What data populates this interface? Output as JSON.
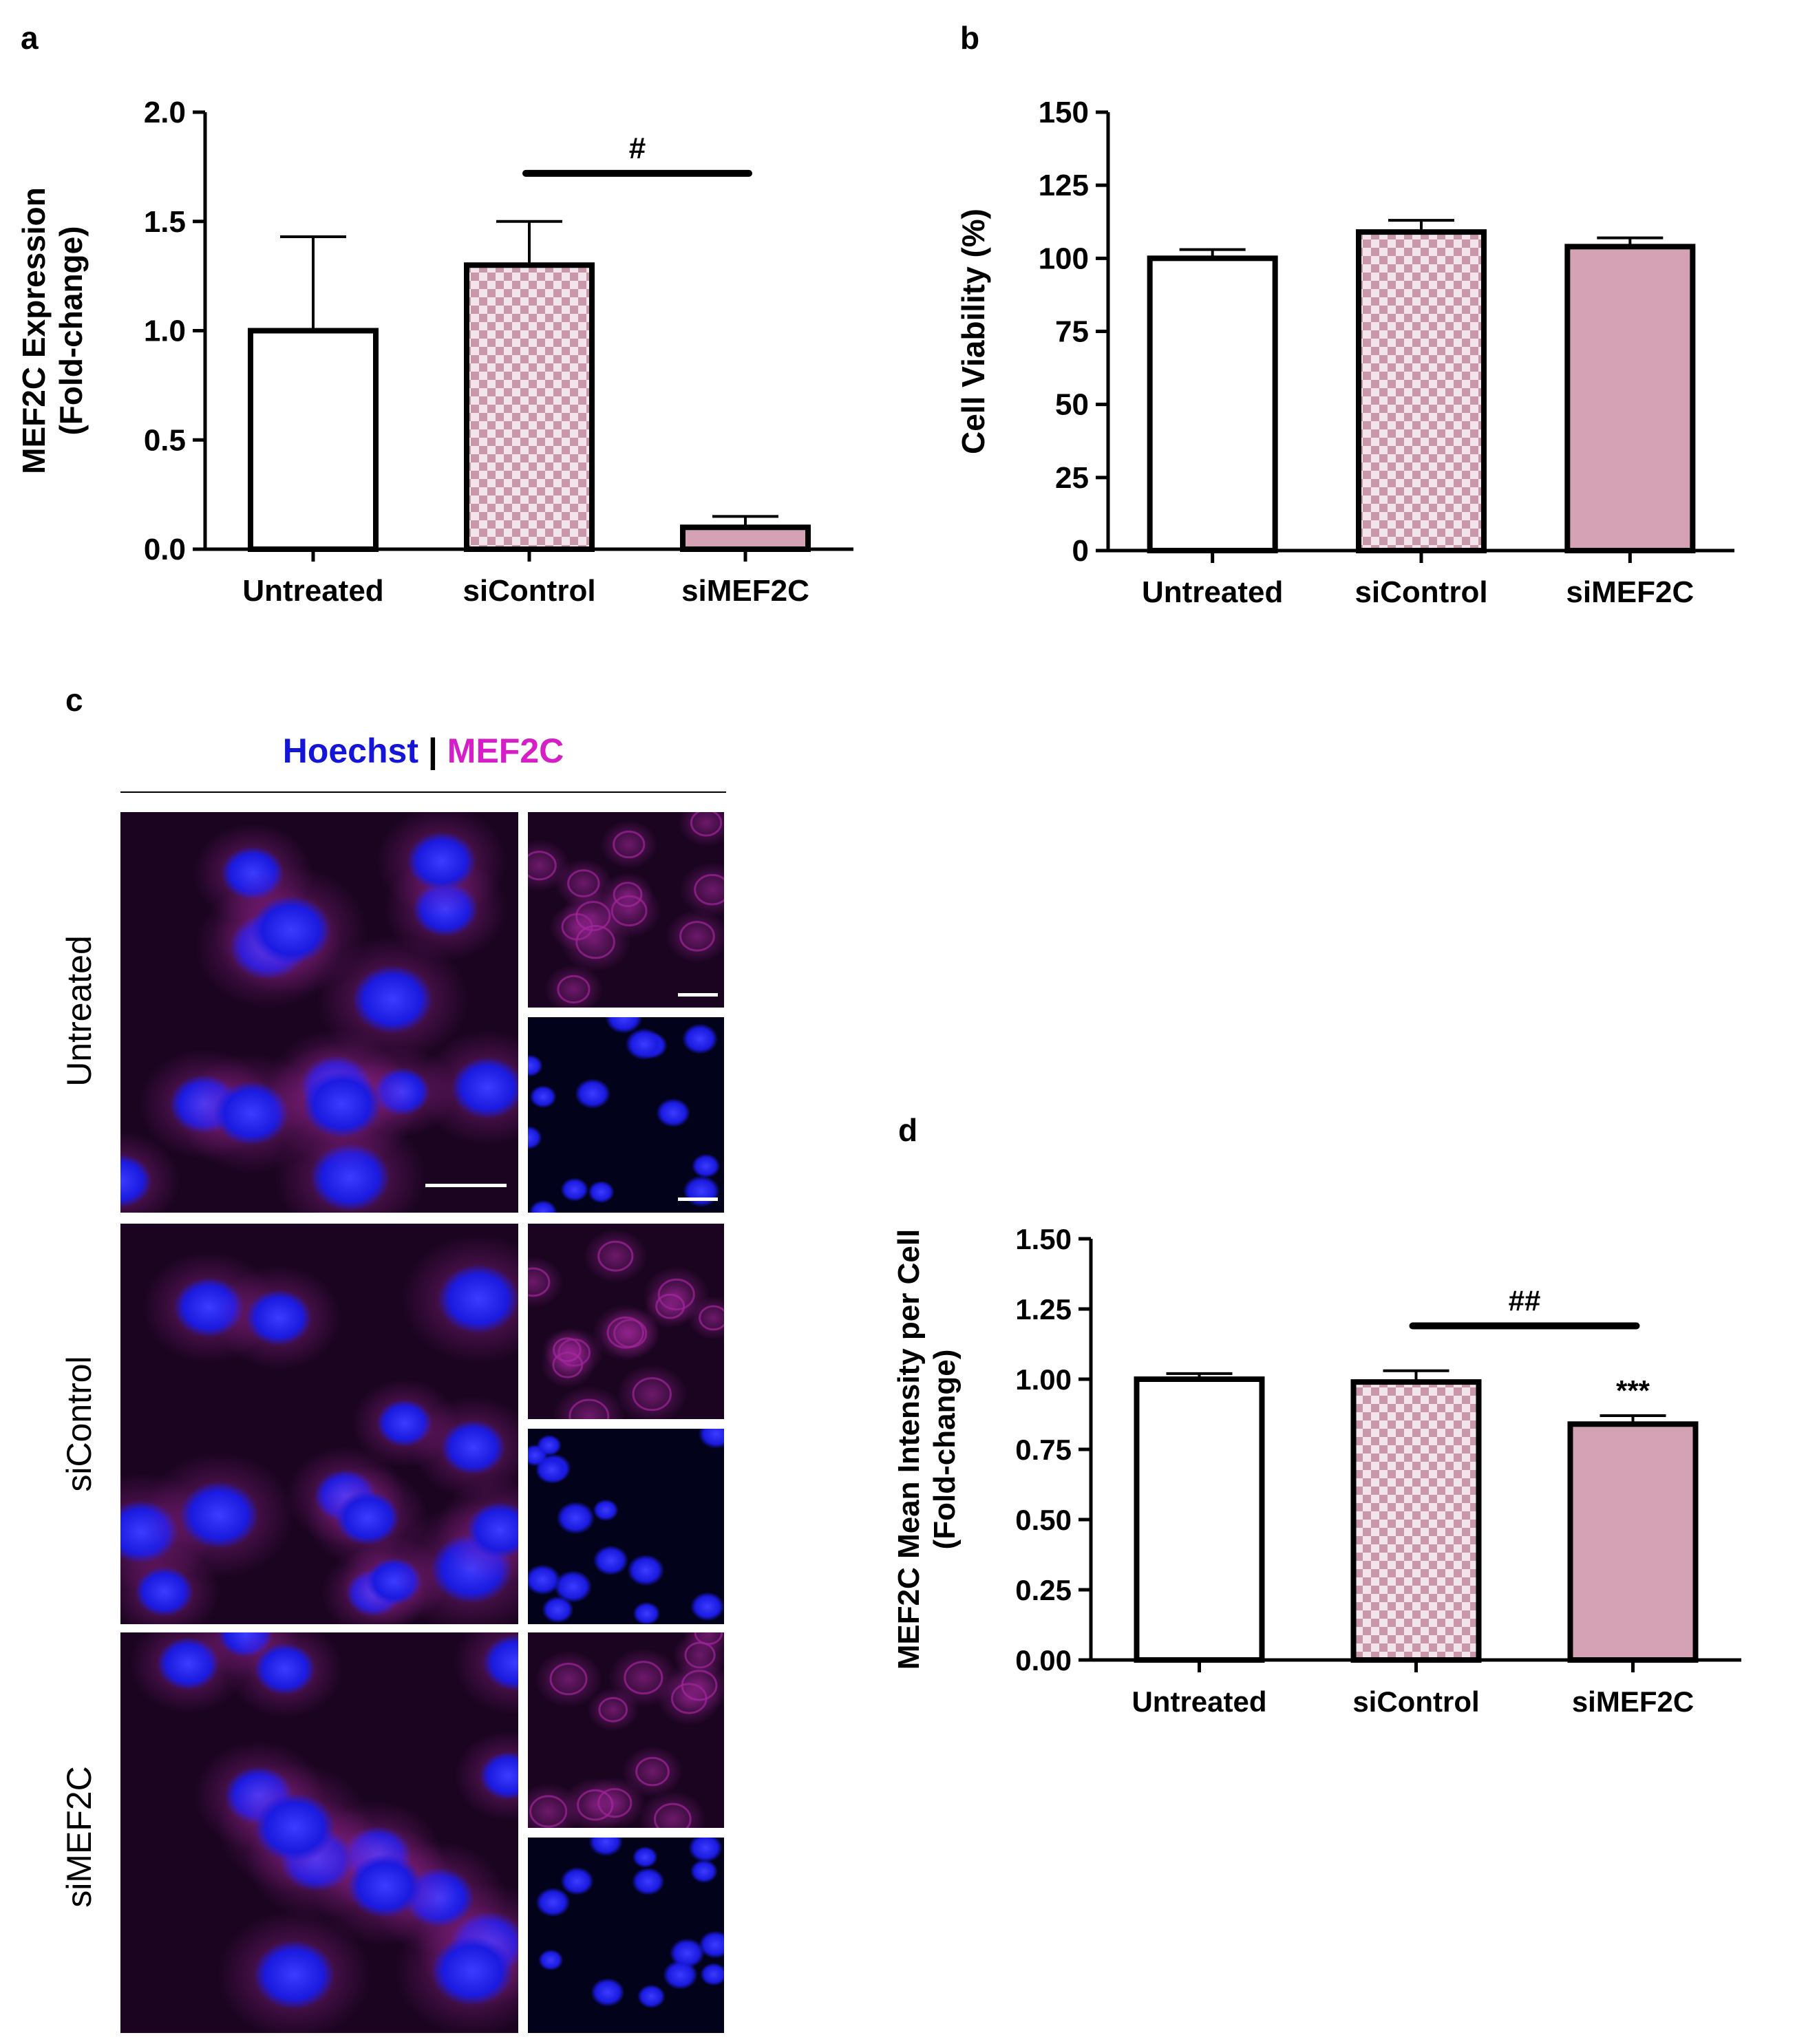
{
  "panels": {
    "a": "a",
    "b": "b",
    "c": "c",
    "d": "d"
  },
  "chart_data": [
    {
      "panel": "a",
      "type": "bar",
      "categories": [
        "Untreated",
        "siControl",
        "siMEF2C"
      ],
      "values": [
        1.0,
        1.3,
        0.1
      ],
      "errors": [
        0.43,
        0.2,
        0.05
      ],
      "ylabel_line1": "MEF2C Expression",
      "ylabel_line2": "(Fold-change)",
      "ylim": [
        0,
        2.0
      ],
      "yticks": [
        0.0,
        0.5,
        1.0,
        1.5,
        2.0
      ],
      "ytick_labels": [
        "0.0",
        "0.5",
        "1.0",
        "1.5",
        "2.0"
      ],
      "bar_styles": [
        "white",
        "checker",
        "pink"
      ],
      "significance": {
        "from": 1,
        "to": 2,
        "label": "#",
        "level": 1.72
      }
    },
    {
      "panel": "b",
      "type": "bar",
      "categories": [
        "Untreated",
        "siControl",
        "siMEF2C"
      ],
      "values": [
        100,
        109,
        104
      ],
      "errors": [
        3,
        4,
        3
      ],
      "ylabel_line1": "Cell Viability (%)",
      "ylabel_line2": "",
      "ylim": [
        0,
        150
      ],
      "yticks": [
        0,
        25,
        50,
        75,
        100,
        125,
        150
      ],
      "ytick_labels": [
        "0",
        "25",
        "50",
        "75",
        "100",
        "125",
        "150"
      ],
      "bar_styles": [
        "white",
        "checker",
        "pink"
      ]
    },
    {
      "panel": "d",
      "type": "bar",
      "categories": [
        "Untreated",
        "siControl",
        "siMEF2C"
      ],
      "values": [
        1.0,
        0.99,
        0.84
      ],
      "errors": [
        0.02,
        0.04,
        0.03
      ],
      "ylabel_line1": "MEF2C Mean Intensity per Cell",
      "ylabel_line2": "(Fold-change)",
      "ylim": [
        0,
        1.5
      ],
      "yticks": [
        0.0,
        0.25,
        0.5,
        0.75,
        1.0,
        1.25,
        1.5
      ],
      "ytick_labels": [
        "0.00",
        "0.25",
        "0.50",
        "0.75",
        "1.00",
        "1.25",
        "1.50"
      ],
      "bar_styles": [
        "white",
        "checker",
        "pink"
      ],
      "significance": {
        "from": 1,
        "to": 2,
        "label": "##",
        "level": 1.19
      },
      "bar_annotations": [
        "",
        "",
        "***"
      ]
    }
  ],
  "microscopy": {
    "stain_left": "Hoechst",
    "stain_sep": "|",
    "stain_right": "MEF2C",
    "rows": [
      "Untreated",
      "siControl",
      "siMEF2C"
    ]
  },
  "colors": {
    "bar_pink": "#d4a2b4",
    "checker_light": "#f2e4ea",
    "checker_dark": "#c898aa",
    "hoechst_blue": "#1515d8",
    "mef2c_magenta": "#d61ec8"
  }
}
